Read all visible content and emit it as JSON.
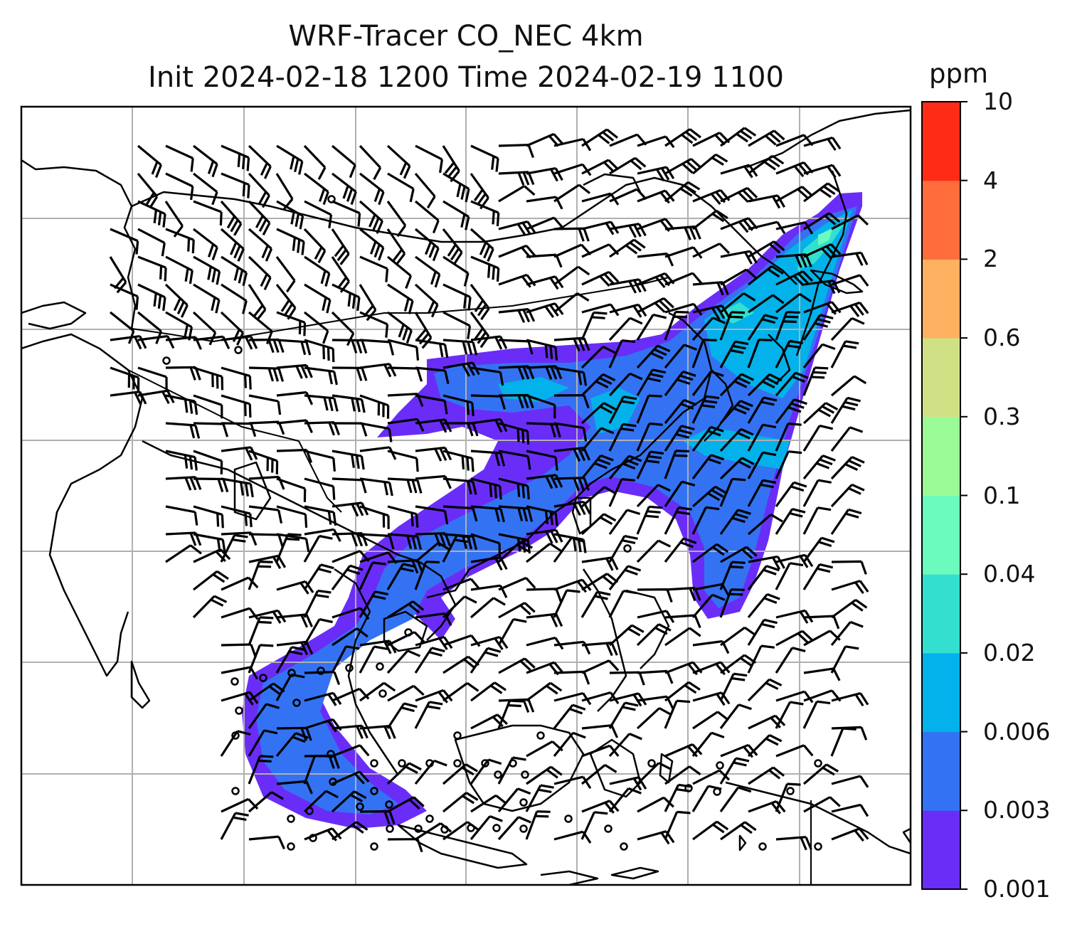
{
  "title": {
    "line1": "WRF-Tracer CO_NEC 4km",
    "line2": "Init 2024-02-18 1200 Time 2024-02-19 1100"
  },
  "colorbar": {
    "unit": "ppm",
    "labels": [
      "10",
      "4",
      "2",
      "0.6",
      "0.3",
      "0.1",
      "0.04",
      "0.02",
      "0.006",
      "0.003",
      "0.001"
    ],
    "colors": [
      "#6a2df8",
      "#3373f3",
      "#03b2ea",
      "#33e0d0",
      "#6cfbbe",
      "#9afb97",
      "#cfe184",
      "#feb160",
      "#fe6d3b",
      "#fe2b17"
    ]
  },
  "map": {
    "features": [
      "coastlines",
      "country-borders",
      "wind-barbs",
      "calm-wind-circles",
      "tracer-plume"
    ],
    "gridlines": true
  }
}
